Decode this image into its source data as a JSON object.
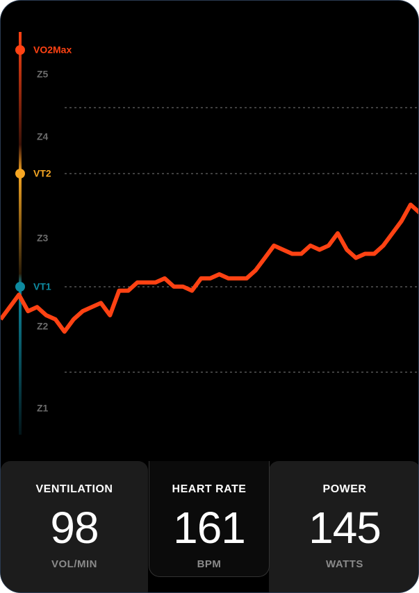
{
  "chart_data": {
    "type": "line",
    "ylim": [
      0,
      100
    ],
    "values": [
      29,
      32,
      35,
      31,
      32,
      30,
      29,
      26,
      29,
      31,
      32,
      33,
      30,
      36,
      36,
      38,
      38,
      38,
      39,
      37,
      37,
      36,
      39,
      39,
      40,
      39,
      39,
      39,
      41,
      44,
      47,
      46,
      45,
      45,
      47,
      46,
      47,
      50,
      46,
      44,
      45,
      45,
      47,
      50,
      53,
      57,
      55
    ],
    "color": "#ff4213",
    "thresholds": [
      "VO2Max",
      "VT2",
      "VT1"
    ],
    "zones": [
      "Z5",
      "Z4",
      "Z3",
      "Z2",
      "Z1"
    ]
  },
  "metrics": [
    {
      "label": "VENTILATION",
      "value": "98",
      "unit": "VOL/MIN"
    },
    {
      "label": "HEART RATE",
      "value": "161",
      "unit": "BPM"
    },
    {
      "label": "POWER",
      "value": "145",
      "unit": "WATTS"
    }
  ]
}
